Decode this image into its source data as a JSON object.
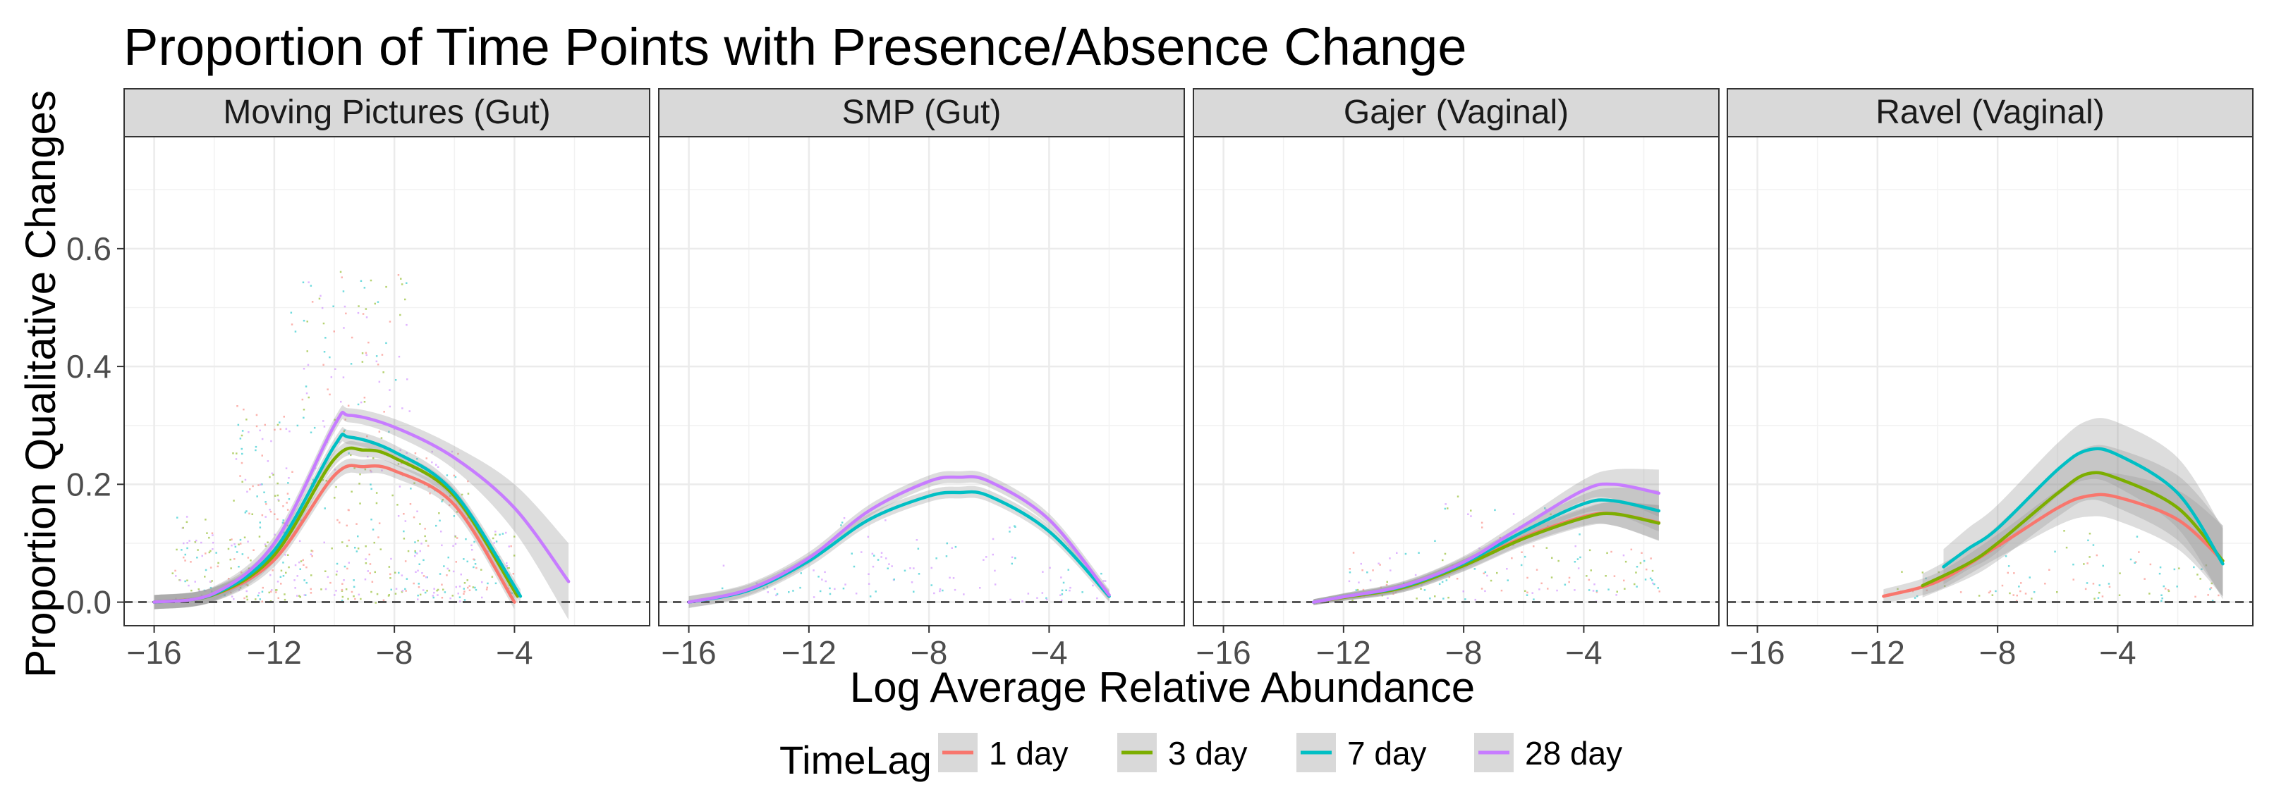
{
  "chart_data": {
    "type": "line",
    "title": "Proportion of Time Points with Presence/Absence Change",
    "xlabel": "Log Average Relative Abundance",
    "ylabel": "Proportion Qualitative Changes",
    "xlim": [
      -17,
      0.5
    ],
    "ylim": [
      -0.04,
      0.79
    ],
    "x_ticks": [
      -16,
      -12,
      -8,
      -4
    ],
    "x_tick_labels": [
      "−16",
      "−12",
      "−8",
      "−4"
    ],
    "y_ticks": [
      0.0,
      0.2,
      0.4,
      0.6
    ],
    "y_tick_labels": [
      "0.0",
      "0.2",
      "0.4",
      "0.6"
    ],
    "reference_line": {
      "y": 0.0,
      "style": "dashed"
    },
    "legend": {
      "title": "TimeLag",
      "position": "bottom",
      "entries": [
        {
          "name": "1 day",
          "color": "#F8766D"
        },
        {
          "name": "3 day",
          "color": "#7CAE00"
        },
        {
          "name": "7 day",
          "color": "#00BFC4"
        },
        {
          "name": "28 day",
          "color": "#C77CFF"
        }
      ]
    },
    "panels": [
      {
        "name": "Moving Pictures (Gut)",
        "series": [
          {
            "name": "1 day",
            "color": "#F8766D",
            "x": [
              -16,
              -14,
              -12,
              -10,
              -9,
              -8,
              -6,
              -4
            ],
            "y": [
              0.0,
              0.013,
              0.072,
              0.215,
              0.23,
              0.223,
              0.165,
              0.0
            ],
            "band": 0.012
          },
          {
            "name": "3 day",
            "color": "#7CAE00",
            "x": [
              -16,
              -14,
              -12,
              -10,
              -9,
              -8,
              -6,
              -3.9
            ],
            "y": [
              0.0,
              0.013,
              0.08,
              0.243,
              0.258,
              0.245,
              0.18,
              0.01
            ],
            "band": 0.012
          },
          {
            "name": "7 day",
            "color": "#00BFC4",
            "x": [
              -16,
              -14,
              -12,
              -10,
              -9.5,
              -8,
              -6,
              -3.8
            ],
            "y": [
              0.0,
              0.014,
              0.088,
              0.265,
              0.28,
              0.255,
              0.185,
              0.01
            ],
            "band": 0.012
          },
          {
            "name": "28 day",
            "color": "#C77CFF",
            "x": [
              -16,
              -14,
              -12,
              -10,
              -9.5,
              -8,
              -6,
              -4,
              -2.2
            ],
            "y": [
              0.0,
              0.015,
              0.1,
              0.3,
              0.317,
              0.297,
              0.245,
              0.16,
              0.035
            ],
            "band": [
              0.012,
              0.012,
              0.012,
              0.012,
              0.012,
              0.014,
              0.02,
              0.04,
              0.065
            ]
          }
        ],
        "scatter_density": [
          [
            -15.5,
            -13.5,
            0.25
          ],
          [
            -13.5,
            -11.5,
            0.6
          ],
          [
            -11.5,
            -7.5,
            1.0
          ],
          [
            -7.5,
            -5.5,
            0.45
          ],
          [
            -5.5,
            -4,
            0.2
          ]
        ]
      },
      {
        "name": "SMP (Gut)",
        "series": [
          {
            "name": "7 day",
            "color": "#00BFC4",
            "x": [
              -16,
              -14,
              -12,
              -10,
              -8,
              -7,
              -6,
              -4,
              -2
            ],
            "y": [
              0.0,
              0.02,
              0.07,
              0.14,
              0.18,
              0.186,
              0.18,
              0.12,
              0.01
            ],
            "band": 0.01
          },
          {
            "name": "28 day",
            "color": "#C77CFF",
            "x": [
              -16,
              -14,
              -12,
              -10,
              -8,
              -7,
              -6,
              -4,
              -2
            ],
            "y": [
              0.0,
              0.022,
              0.075,
              0.155,
              0.205,
              0.212,
              0.205,
              0.14,
              0.012
            ],
            "band": 0.01
          }
        ],
        "scatter_density": [
          [
            -15,
            -11,
            0.1
          ],
          [
            -11,
            -5,
            0.25
          ],
          [
            -5,
            -2,
            0.1
          ]
        ]
      },
      {
        "name": "Gajer (Vaginal)",
        "series": [
          {
            "name": "1 day",
            "color": "#F8766D",
            "x": [
              -13,
              -12,
              -10,
              -8,
              -6,
              -4,
              -3,
              -1.5
            ],
            "y": [
              0.0,
              0.008,
              0.025,
              0.063,
              0.11,
              0.145,
              0.15,
              0.135
            ],
            "band": [
              0.005,
              0.006,
              0.008,
              0.01,
              0.012,
              0.015,
              0.02,
              0.03
            ]
          },
          {
            "name": "3 day",
            "color": "#7CAE00",
            "x": [
              -13,
              -12,
              -10,
              -8,
              -6,
              -4,
              -3,
              -1.5
            ],
            "y": [
              0.0,
              0.008,
              0.025,
              0.062,
              0.108,
              0.143,
              0.15,
              0.134
            ],
            "band": [
              0.005,
              0.006,
              0.008,
              0.01,
              0.012,
              0.015,
              0.02,
              0.03
            ]
          },
          {
            "name": "7 day",
            "color": "#00BFC4",
            "x": [
              -13,
              -12,
              -10,
              -8,
              -6,
              -4,
              -3,
              -1.5
            ],
            "y": [
              0.0,
              0.009,
              0.027,
              0.066,
              0.12,
              0.167,
              0.172,
              0.155
            ],
            "band": [
              0.005,
              0.006,
              0.008,
              0.01,
              0.012,
              0.016,
              0.022,
              0.035
            ]
          },
          {
            "name": "28 day",
            "color": "#C77CFF",
            "x": [
              -13,
              -12,
              -10,
              -8,
              -6,
              -4,
              -3,
              -1.5
            ],
            "y": [
              0.0,
              0.009,
              0.028,
              0.068,
              0.13,
              0.19,
              0.2,
              0.185
            ],
            "band": [
              0.005,
              0.006,
              0.008,
              0.01,
              0.012,
              0.018,
              0.025,
              0.04
            ]
          }
        ],
        "scatter_density": [
          [
            -12,
            -9,
            0.15
          ],
          [
            -9,
            -4,
            0.3
          ],
          [
            -4,
            -1.5,
            0.15
          ]
        ]
      },
      {
        "name": "Ravel (Vaginal)",
        "series": [
          {
            "name": "1 day",
            "color": "#F8766D",
            "x": [
              -11.8,
              -10,
              -8,
              -6,
              -5,
              -4,
              -2,
              -0.5
            ],
            "y": [
              0.01,
              0.035,
              0.095,
              0.16,
              0.18,
              0.178,
              0.14,
              0.07
            ],
            "band": [
              0.012,
              0.015,
              0.02,
              0.03,
              0.035,
              0.04,
              0.05,
              0.06
            ]
          },
          {
            "name": "3 day",
            "color": "#7CAE00",
            "x": [
              -10.5,
              -9,
              -8,
              -6,
              -5,
              -4,
              -2,
              -0.5
            ],
            "y": [
              0.028,
              0.065,
              0.1,
              0.185,
              0.218,
              0.21,
              0.16,
              0.07
            ],
            "band": [
              0.02,
              0.025,
              0.03,
              0.04,
              0.045,
              0.05,
              0.055,
              0.06
            ]
          },
          {
            "name": "7 day",
            "color": "#00BFC4",
            "x": [
              -9.8,
              -9,
              -8,
              -6,
              -5,
              -4,
              -2,
              -0.5
            ],
            "y": [
              0.06,
              0.09,
              0.125,
              0.225,
              0.258,
              0.25,
              0.185,
              0.065
            ],
            "band": [
              0.03,
              0.035,
              0.04,
              0.045,
              0.05,
              0.055,
              0.06,
              0.06
            ]
          }
        ],
        "scatter_density": [
          [
            -12,
            -8,
            0.08
          ],
          [
            -8,
            -3,
            0.2
          ],
          [
            -3,
            -0.5,
            0.1
          ]
        ]
      }
    ]
  }
}
